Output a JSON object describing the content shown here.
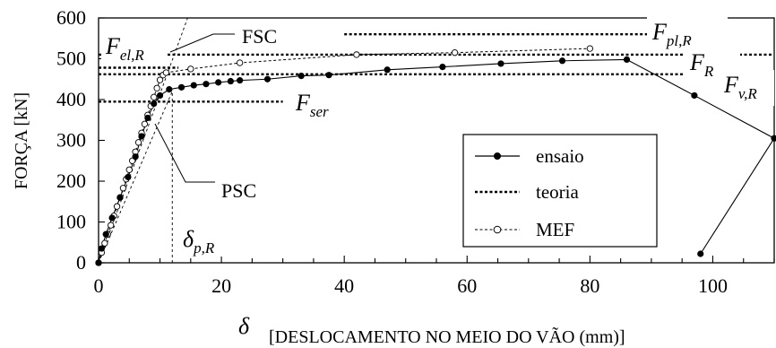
{
  "chart_data": {
    "type": "line",
    "xlabel_symbol": "δ",
    "xlabel": "[DESLOCAMENTO NO MEIO DO VÃO (mm)]",
    "ylabel": "FORÇA [kN]",
    "xlim": [
      0,
      110
    ],
    "ylim": [
      0,
      600
    ],
    "x_ticks": [
      "0",
      "20",
      "40",
      "60",
      "80",
      "100"
    ],
    "x_minor_step": 5,
    "y_ticks": [
      "0",
      "100",
      "200",
      "300",
      "400",
      "500",
      "600"
    ],
    "grid": false,
    "legend_position": "lower-right",
    "series": [
      {
        "name": "ensaio",
        "style": "solid line with filled circles",
        "x": [
          0,
          0.5,
          1.2,
          2.2,
          3.5,
          4.8,
          6.0,
          7.0,
          8.0,
          9.0,
          10.0,
          11.5,
          13.5,
          15.5,
          17.5,
          19.5,
          21.5,
          23.0,
          27.5,
          33.0,
          37.5,
          47.0,
          56.0,
          65.5,
          75.5,
          86.0,
          97.0,
          110.0,
          98.0
        ],
        "y": [
          0,
          35,
          70,
          110,
          160,
          210,
          260,
          310,
          355,
          390,
          410,
          425,
          430,
          435,
          438,
          442,
          445,
          447,
          450,
          458,
          460,
          473,
          480,
          488,
          495,
          498,
          410,
          305,
          22
        ]
      },
      {
        "name": "teoria",
        "style": "heavy dotted lines",
        "x": [],
        "y": []
      },
      {
        "name": "MEF",
        "style": "dashed line with open circles",
        "x": [
          0,
          0.5,
          1.0,
          1.5,
          2.0,
          2.5,
          3.0,
          3.5,
          4.0,
          4.5,
          5.0,
          5.5,
          6.0,
          6.5,
          7.0,
          7.5,
          8.0,
          8.5,
          9.0,
          9.5,
          10.0,
          10.5,
          11.0,
          15.0,
          23.0,
          42.0,
          58.0,
          80.0
        ],
        "y": [
          0,
          25,
          48,
          70,
          92,
          115,
          138,
          160,
          183,
          205,
          228,
          250,
          272,
          295,
          318,
          340,
          362,
          384,
          406,
          428,
          448,
          460,
          466,
          475,
          490,
          510,
          515,
          525
        ]
      }
    ],
    "theory_lines": [
      {
        "label": "F_pl,R",
        "y": 560,
        "x_from": 40,
        "x_to": 90
      },
      {
        "label": "F_R",
        "y": 510,
        "x_from": 0,
        "x_to": 110
      },
      {
        "label": "F_el,R",
        "y": 478,
        "x_from": 0,
        "x_to": 13
      },
      {
        "label": "F_v,R",
        "y": 462,
        "x_from": 0,
        "x_to": 110
      },
      {
        "label": "F_ser",
        "y": 395,
        "x_from": 0,
        "x_to": 30
      }
    ],
    "reference_lines": [
      {
        "label": "FSC",
        "style": "thin dashed",
        "x1": 0,
        "y1": 0,
        "x2": 14.5,
        "y2": 600
      },
      {
        "label": "PSC",
        "style": "thin dashed",
        "x1": 0,
        "y1": 0,
        "x2": 12,
        "y2": 420
      },
      {
        "label": "δ_p,R",
        "style": "thin dashed vertical",
        "x": 12,
        "y_from": 0,
        "y_to": 420
      }
    ],
    "annotations": [
      {
        "id": "fel",
        "main": "F",
        "sub": "el,R"
      },
      {
        "id": "fsc",
        "main": "FSC"
      },
      {
        "id": "fpl",
        "main": "F",
        "sub": "pl,R"
      },
      {
        "id": "fr",
        "main": "F",
        "sub": "R"
      },
      {
        "id": "fvr",
        "main": "F",
        "sub": "v,R"
      },
      {
        "id": "fser",
        "main": "F",
        "sub": "ser"
      },
      {
        "id": "psc",
        "main": "PSC"
      },
      {
        "id": "dpr",
        "main": "δ",
        "sub": "p,R"
      }
    ],
    "legend": [
      {
        "label": "ensaio"
      },
      {
        "label": "teoria"
      },
      {
        "label": "MEF"
      }
    ]
  }
}
